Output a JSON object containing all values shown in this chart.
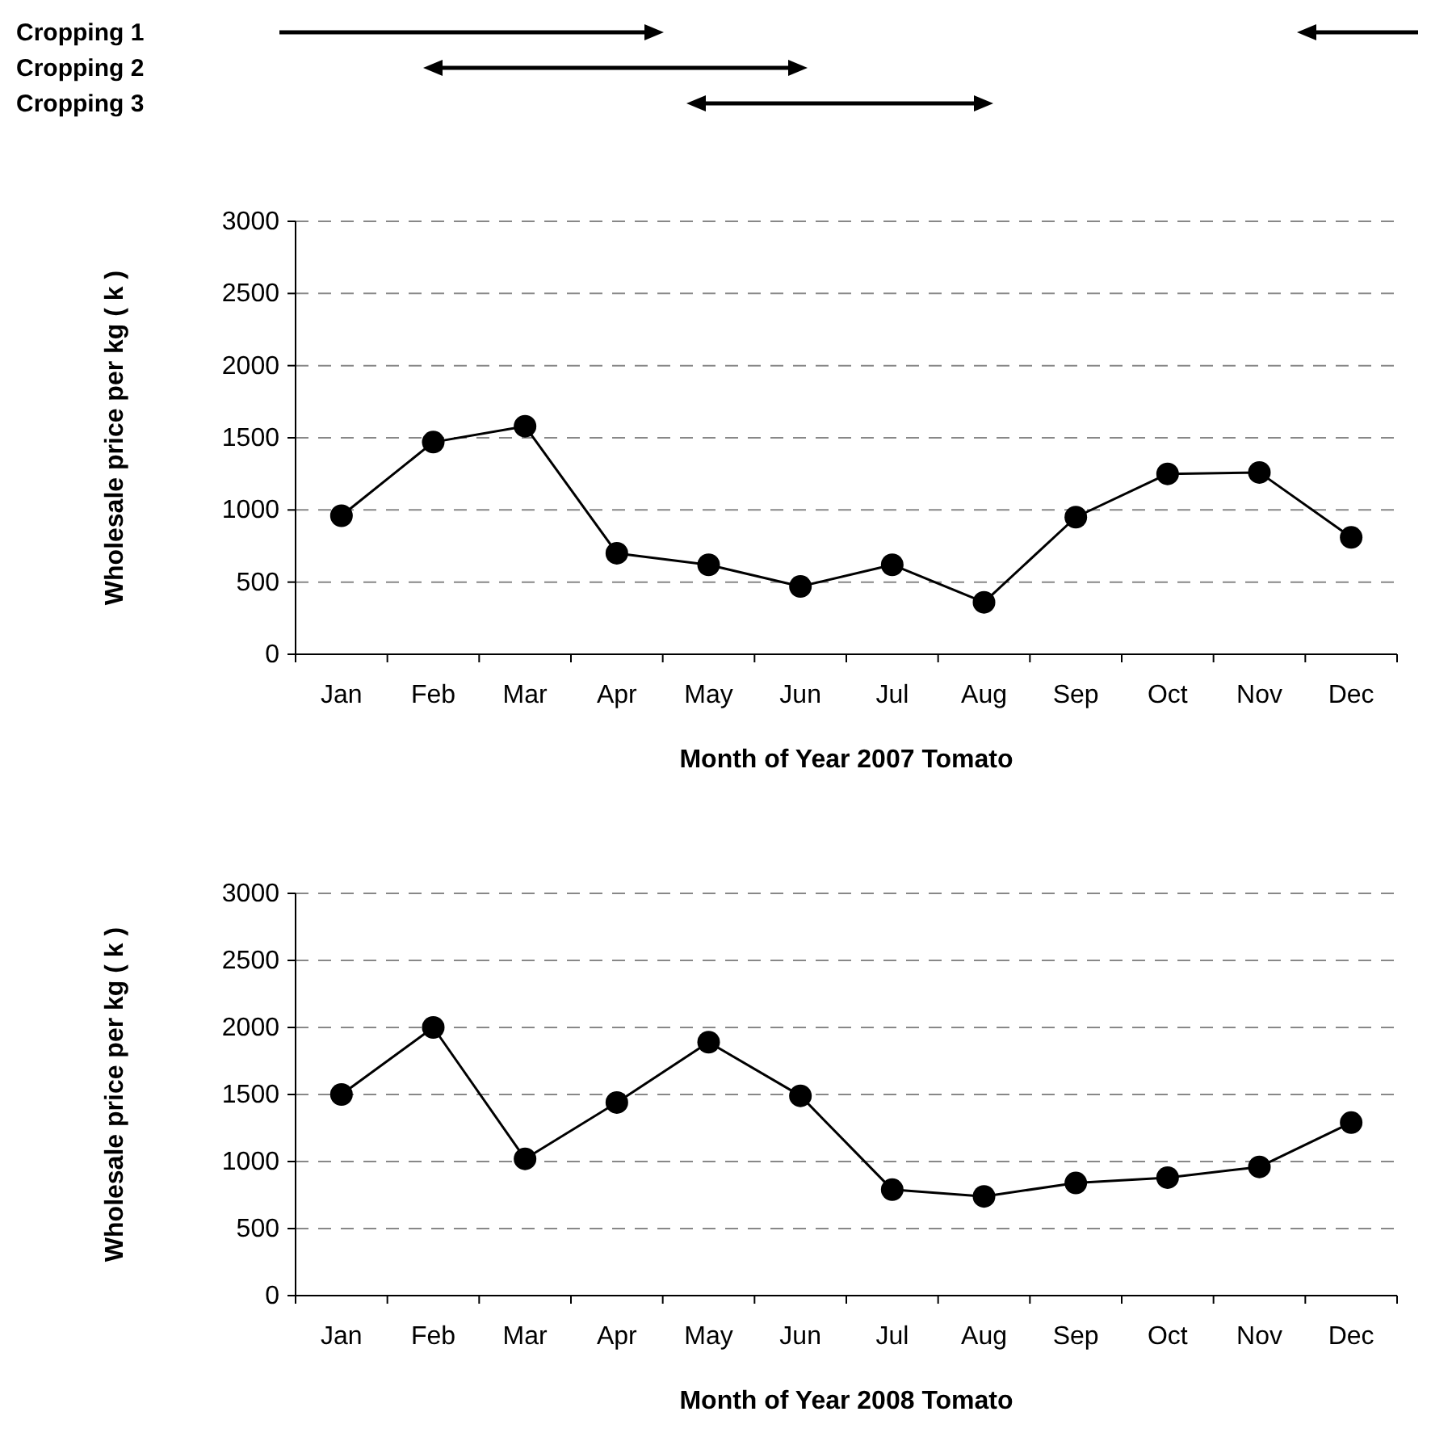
{
  "chart_data": [
    {
      "type": "line",
      "xlabel": "Month of Year 2007 Tomato",
      "ylabel": "Wholesale price per kg ( k )",
      "categories": [
        "Jan",
        "Feb",
        "Mar",
        "Apr",
        "May",
        "Jun",
        "Jul",
        "Aug",
        "Sep",
        "Oct",
        "Nov",
        "Dec"
      ],
      "series": [
        {
          "color": "#000000",
          "values": [
            960,
            1470,
            1580,
            700,
            620,
            470,
            620,
            360,
            950,
            1250,
            1260,
            810
          ]
        }
      ],
      "ylim": [
        0,
        3000
      ],
      "yticks": [
        0,
        500,
        1000,
        1500,
        2000,
        2500,
        3000
      ],
      "grid": "y",
      "marker": "circle",
      "line_style": "solid",
      "annotations": [
        "Cropping 1",
        "Cropping 2",
        "Cropping 3"
      ]
    },
    {
      "type": "line",
      "xlabel": "Month of Year 2008 Tomato",
      "ylabel": "Wholesale price per kg ( k )",
      "categories": [
        "Jan",
        "Feb",
        "Mar",
        "Apr",
        "May",
        "Jun",
        "Jul",
        "Aug",
        "Sep",
        "Oct",
        "Nov",
        "Dec"
      ],
      "series": [
        {
          "color": "#000000",
          "values": [
            1500,
            2000,
            1020,
            1440,
            1890,
            1490,
            790,
            740,
            840,
            880,
            960,
            1290
          ]
        }
      ],
      "ylim": [
        0,
        3000
      ],
      "yticks": [
        0,
        500,
        1000,
        1500,
        2000,
        2500,
        3000
      ],
      "grid": "y",
      "marker": "circle",
      "line_style": "solid"
    }
  ]
}
